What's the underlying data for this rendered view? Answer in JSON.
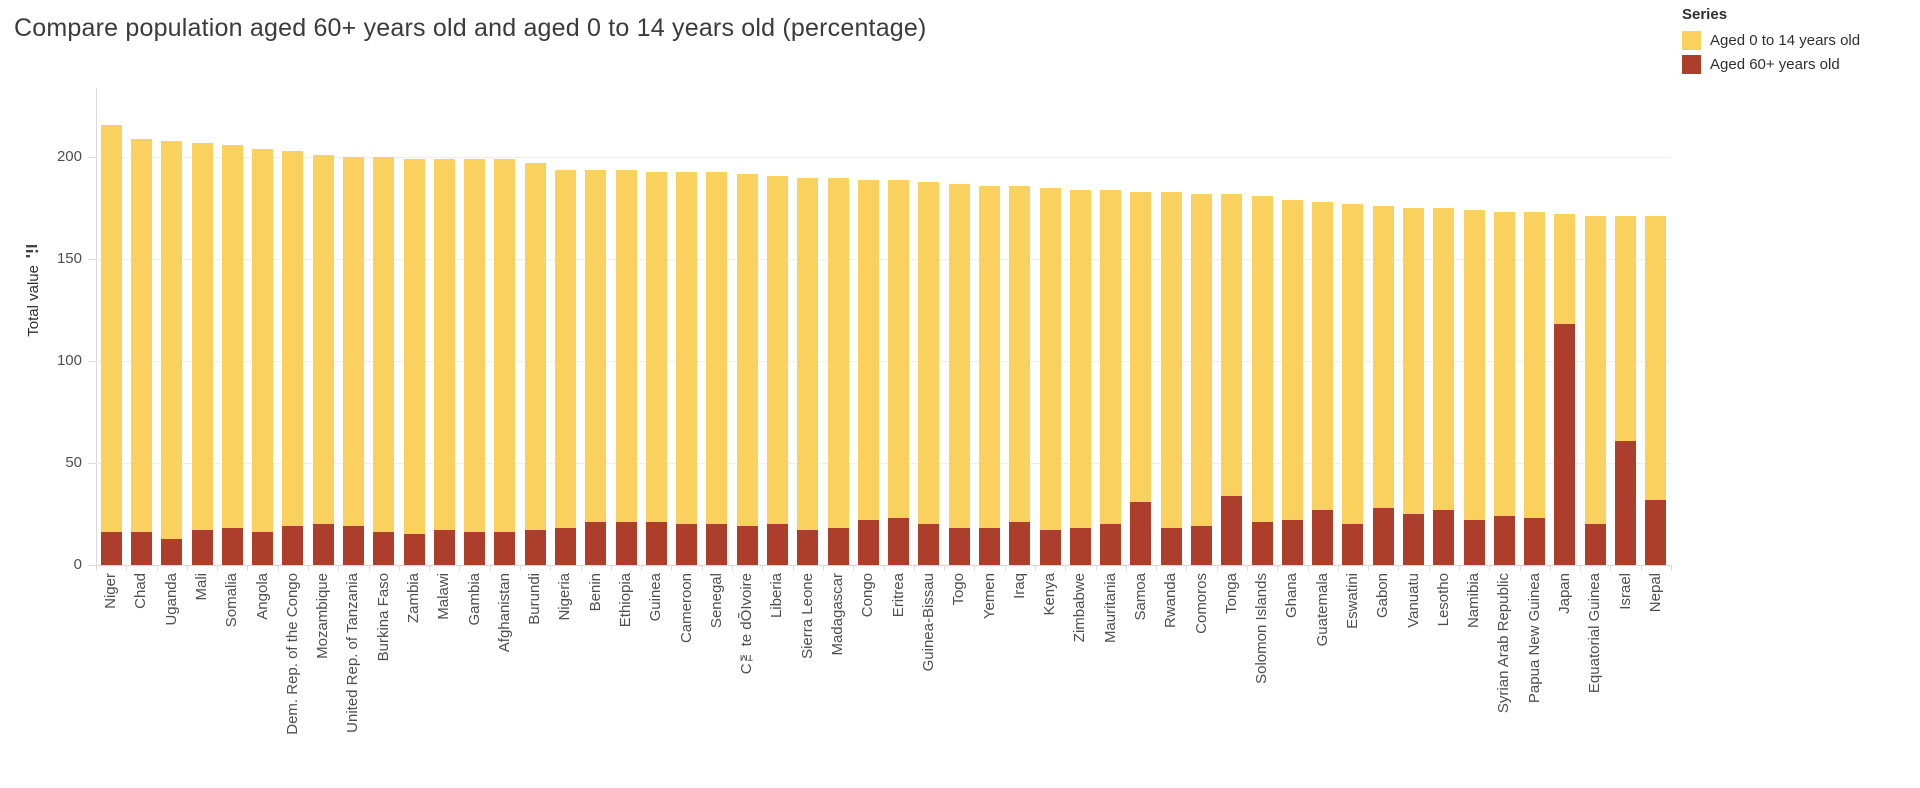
{
  "title": "Compare population aged 60+ years old and aged 0 to 14 years old (percentage)",
  "legend": {
    "title": "Series",
    "items": [
      {
        "label": "Aged 0 to 14 years old",
        "color": "#FAD15E"
      },
      {
        "label": "Aged 60+ years old",
        "color": "#AE3E2C"
      }
    ]
  },
  "y_axis": {
    "title": "Total value",
    "ticks": [
      0,
      50,
      100,
      150,
      200
    ],
    "sort_icon": "sort-descending-icon"
  },
  "chart_data": {
    "type": "bar",
    "stacked": true,
    "title": "Compare population aged 60+ years old and aged 0 to 14 years old (percentage)",
    "xlabel": "",
    "ylabel": "Total value",
    "ylim": [
      0,
      234
    ],
    "gridlines": [
      50,
      100,
      150,
      200
    ],
    "grid": true,
    "legend_position": "top-right",
    "categories": [
      "Niger",
      "Chad",
      "Uganda",
      "Mali",
      "Somalia",
      "Angola",
      "Dem. Rep. of the Congo",
      "Mozambique",
      "United Rep. of Tanzania",
      "Burkina Faso",
      "Zambia",
      "Malawi",
      "Gambia",
      "Afghanistan",
      "Burundi",
      "Nigeria",
      "Benin",
      "Ethiopia",
      "Guinea",
      "Cameroon",
      "Senegal",
      "C™te dÕIvoire",
      "Liberia",
      "Sierra Leone",
      "Madagascar",
      "Congo",
      "Eritrea",
      "Guinea-Bissau",
      "Togo",
      "Yemen",
      "Iraq",
      "Kenya",
      "Zimbabwe",
      "Mauritania",
      "Samoa",
      "Rwanda",
      "Comoros",
      "Tonga",
      "Solomon Islands",
      "Ghana",
      "Guatemala",
      "Eswatini",
      "Gabon",
      "Vanuatu",
      "Lesotho",
      "Namibia",
      "Syrian Arab Republic",
      "Papua New Guinea",
      "Japan",
      "Equatorial Guinea",
      "Israel",
      "Nepal"
    ],
    "series": [
      {
        "name": "Aged 0 to 14 years old",
        "color": "#FAD15E",
        "values": [
          200,
          193,
          195,
          190,
          188,
          188,
          184,
          181,
          181,
          184,
          184,
          182,
          183,
          183,
          180,
          176,
          173,
          173,
          172,
          173,
          173,
          173,
          171,
          173,
          172,
          167,
          166,
          168,
          169,
          168,
          165,
          168,
          166,
          164,
          152,
          165,
          163,
          148,
          160,
          157,
          151,
          157,
          148,
          150,
          148,
          152,
          149,
          150,
          54,
          151,
          110,
          139
        ]
      },
      {
        "name": "Aged 60+ years old",
        "color": "#AE3E2C",
        "values": [
          16,
          16,
          13,
          17,
          18,
          16,
          19,
          20,
          19,
          16,
          15,
          17,
          16,
          16,
          17,
          18,
          21,
          21,
          21,
          20,
          20,
          19,
          20,
          17,
          18,
          22,
          23,
          20,
          18,
          18,
          21,
          17,
          18,
          20,
          31,
          18,
          19,
          34,
          21,
          22,
          27,
          20,
          28,
          25,
          27,
          22,
          24,
          23,
          118,
          20,
          61,
          32
        ]
      }
    ]
  }
}
